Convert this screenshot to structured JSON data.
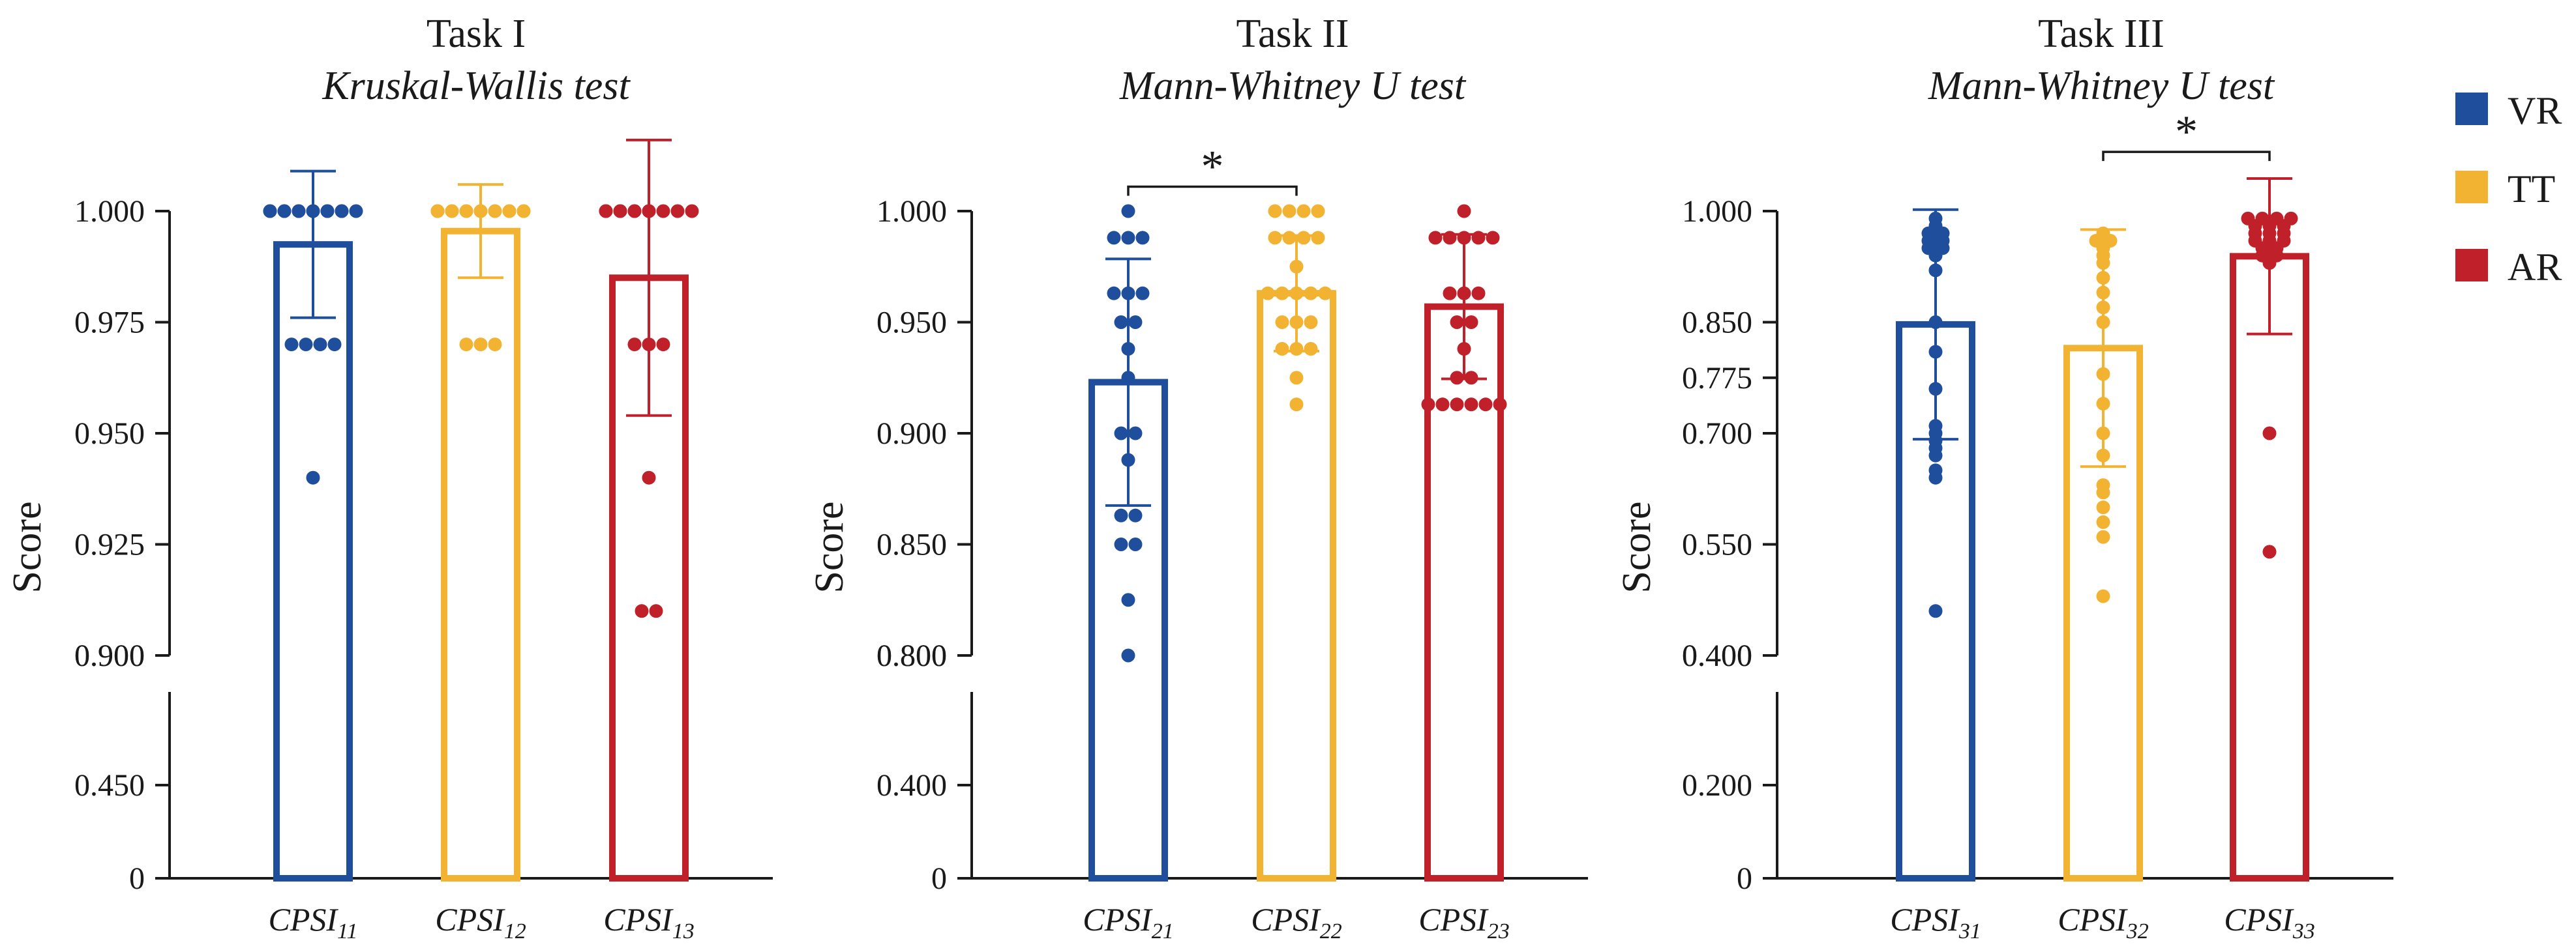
{
  "legend": [
    {
      "key": "VR",
      "label": "VR",
      "color": "#1f4e9c"
    },
    {
      "key": "TT",
      "label": "TT",
      "color": "#f2b332"
    },
    {
      "key": "AR",
      "label": "AR",
      "color": "#c0202a"
    }
  ],
  "chart_data": [
    {
      "type": "bar",
      "title": "Task I",
      "subtitle": "Kruskal-Wallis test",
      "ylabel": "Score",
      "axis": {
        "upper": {
          "range": [
            0.9,
            1.0
          ],
          "ticks": [
            "0.900",
            "0.925",
            "0.950",
            "0.975",
            "1.000"
          ]
        },
        "lower": {
          "range": [
            0,
            0.9
          ],
          "ticks": [
            "0",
            "0.450",
            "0.900"
          ]
        }
      },
      "categories": [
        {
          "base": "CPSI",
          "sub": "11",
          "group": "VR"
        },
        {
          "base": "CPSI",
          "sub": "12",
          "group": "TT"
        },
        {
          "base": "CPSI",
          "sub": "13",
          "group": "AR"
        }
      ],
      "series": [
        {
          "name": "VR",
          "mean": 0.9925,
          "sd": 0.0165,
          "points": [
            1,
            1,
            1,
            1,
            1,
            1,
            1,
            1,
            1,
            1,
            1,
            1,
            1,
            0.97,
            0.97,
            0.97,
            0.97,
            0.94
          ]
        },
        {
          "name": "TT",
          "mean": 0.9955,
          "sd": 0.0105,
          "points": [
            1,
            1,
            1,
            1,
            1,
            1,
            1,
            1,
            1,
            1,
            1,
            1,
            1,
            1,
            1,
            0.97,
            0.97,
            0.97
          ]
        },
        {
          "name": "AR",
          "mean": 0.985,
          "sd": 0.031,
          "points": [
            1,
            1,
            1,
            1,
            1,
            1,
            1,
            1,
            1,
            1,
            1,
            0.97,
            0.97,
            0.97,
            0.94,
            0.91,
            0.91
          ]
        }
      ],
      "significance": []
    },
    {
      "type": "bar",
      "title": "Task II",
      "subtitle": "Mann-Whitney U test",
      "ylabel": "Score",
      "axis": {
        "upper": {
          "range": [
            0.8,
            1.0
          ],
          "ticks": [
            "0.800",
            "0.850",
            "0.900",
            "0.950",
            "1.000"
          ]
        },
        "lower": {
          "range": [
            0,
            0.8
          ],
          "ticks": [
            "0",
            "0.400",
            "0.800"
          ]
        }
      },
      "categories": [
        {
          "base": "CPSI",
          "sub": "21",
          "group": "VR"
        },
        {
          "base": "CPSI",
          "sub": "22",
          "group": "TT"
        },
        {
          "base": "CPSI",
          "sub": "23",
          "group": "AR"
        }
      ],
      "series": [
        {
          "name": "VR",
          "mean": 0.923,
          "sd": 0.0555,
          "points": [
            1.0,
            0.988,
            0.988,
            0.988,
            0.963,
            0.963,
            0.963,
            0.95,
            0.95,
            0.938,
            0.925,
            0.9,
            0.9,
            0.888,
            0.863,
            0.863,
            0.85,
            0.85,
            0.825,
            0.8
          ]
        },
        {
          "name": "TT",
          "mean": 0.963,
          "sd": 0.026,
          "points": [
            1,
            1,
            1,
            1,
            0.988,
            0.988,
            0.988,
            0.988,
            0.975,
            0.963,
            0.963,
            0.963,
            0.963,
            0.963,
            0.95,
            0.95,
            0.95,
            0.938,
            0.938,
            0.938,
            0.925,
            0.913
          ]
        },
        {
          "name": "AR",
          "mean": 0.957,
          "sd": 0.0325,
          "points": [
            1,
            0.988,
            0.988,
            0.988,
            0.988,
            0.988,
            0.963,
            0.963,
            0.963,
            0.95,
            0.95,
            0.938,
            0.925,
            0.925,
            0.913,
            0.913,
            0.913,
            0.913,
            0.913,
            0.913
          ]
        }
      ],
      "significance": [
        {
          "from": 0,
          "to": 1,
          "label": "*",
          "y": 1.011
        }
      ]
    },
    {
      "type": "bar",
      "title": "Task III",
      "subtitle": "Mann-Whitney U test",
      "ylabel": "Score",
      "axis": {
        "upper": {
          "range": [
            0.4,
            1.0
          ],
          "ticks": [
            "0.400",
            "0.550",
            "0.700",
            "0.775",
            "0.850",
            "1.000"
          ]
        },
        "lower": {
          "range": [
            0,
            0.4
          ],
          "ticks": [
            "0",
            "0.200",
            "0.400"
          ]
        }
      },
      "categories": [
        {
          "base": "CPSI",
          "sub": "31",
          "group": "VR"
        },
        {
          "base": "CPSI",
          "sub": "32",
          "group": "TT"
        },
        {
          "base": "CPSI",
          "sub": "33",
          "group": "AR"
        }
      ],
      "series": [
        {
          "name": "VR",
          "mean": 0.847,
          "sd": 0.155,
          "points": [
            0.99,
            0.98,
            0.97,
            0.97,
            0.96,
            0.96,
            0.95,
            0.95,
            0.94,
            0.92,
            0.85,
            0.81,
            0.76,
            0.71,
            0.7,
            0.69,
            0.68,
            0.67,
            0.65,
            0.64,
            0.46
          ]
        },
        {
          "name": "TT",
          "mean": 0.815,
          "sd": 0.16,
          "points": [
            0.97,
            0.96,
            0.96,
            0.95,
            0.94,
            0.93,
            0.91,
            0.89,
            0.87,
            0.85,
            0.78,
            0.74,
            0.7,
            0.67,
            0.63,
            0.62,
            0.6,
            0.58,
            0.56,
            0.48
          ]
        },
        {
          "name": "AR",
          "mean": 0.939,
          "sd": 0.105,
          "points": [
            0.99,
            0.99,
            0.99,
            0.99,
            0.98,
            0.98,
            0.98,
            0.97,
            0.97,
            0.97,
            0.96,
            0.96,
            0.96,
            0.95,
            0.95,
            0.94,
            0.94,
            0.93,
            0.7,
            0.54
          ]
        }
      ],
      "significance": [
        {
          "from": 1,
          "to": 2,
          "label": "*",
          "y": 1.08
        }
      ]
    }
  ]
}
